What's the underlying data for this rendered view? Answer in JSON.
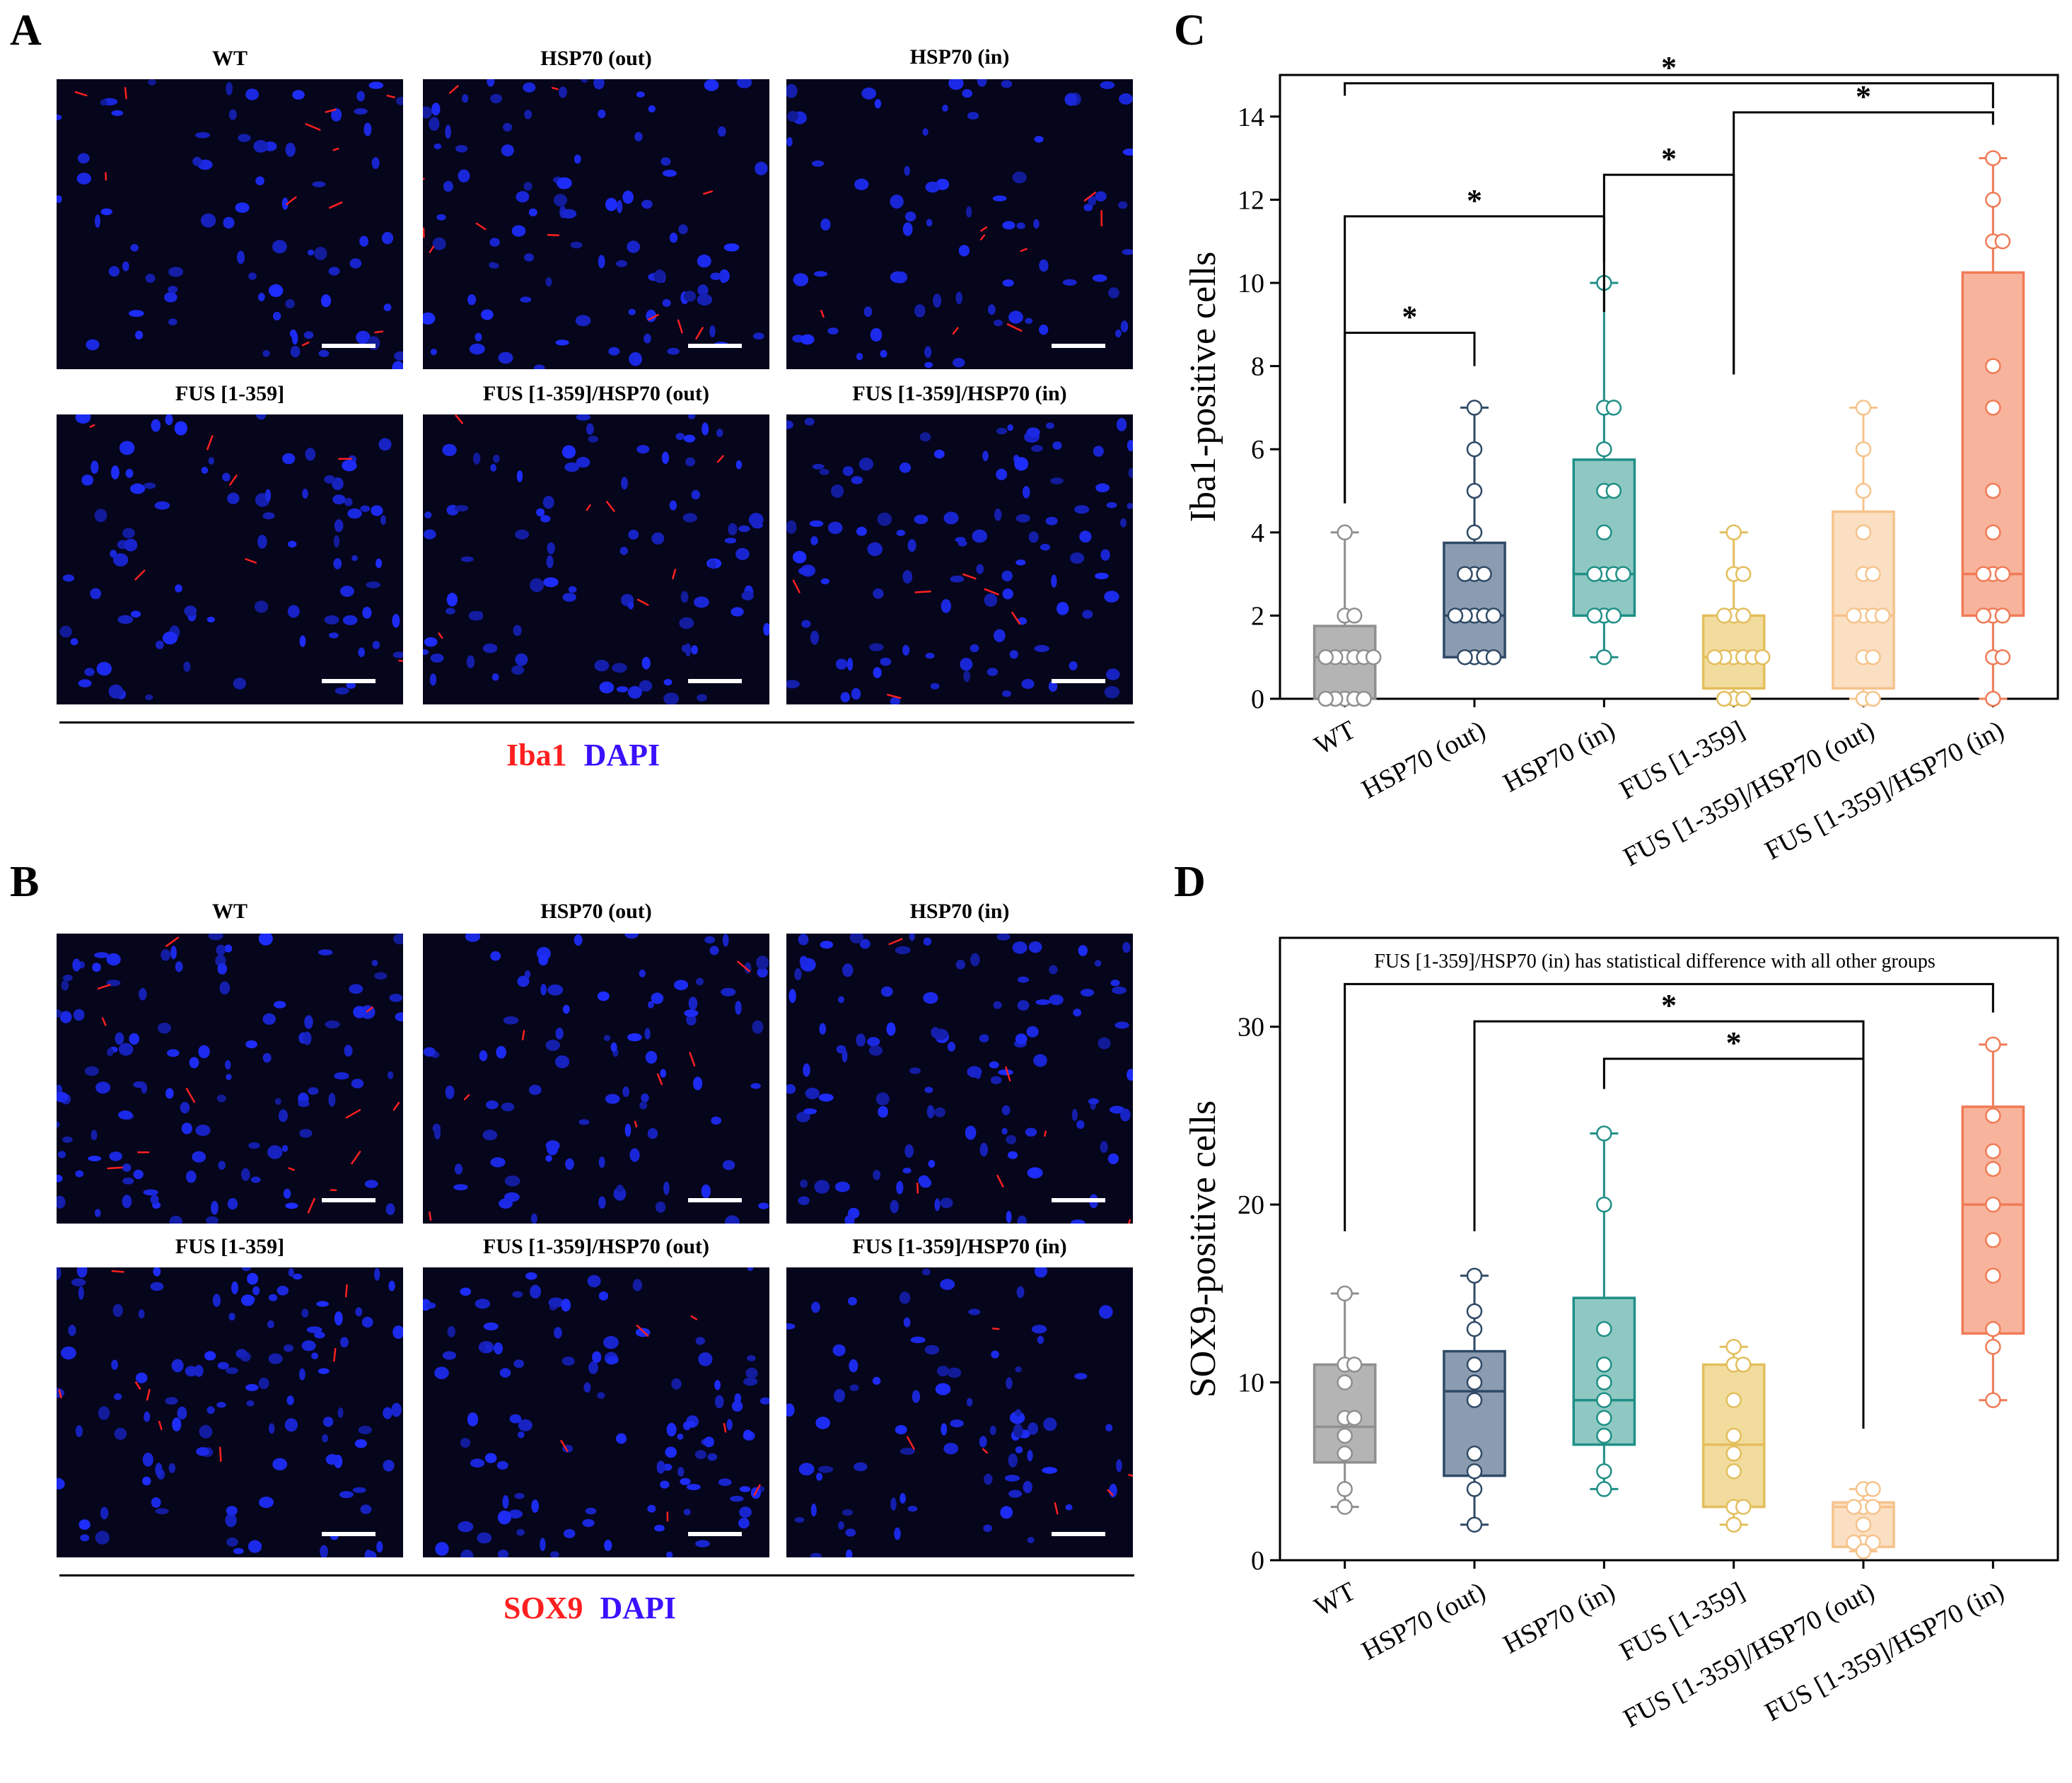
{
  "panels": {
    "A": {
      "label": "A",
      "row1_titles": [
        "WT",
        "HSP70 (out)",
        "HSP70 (in)"
      ],
      "row2_titles": [
        "FUS [1-359]",
        "FUS [1-359]/HSP70 (out)",
        "FUS [1-359]/HSP70 (in)"
      ],
      "legend_marker": "Iba1",
      "legend_dapi": "DAPI",
      "marker_color": "#ff1f1f",
      "dapi_color": "#3a10ff"
    },
    "B": {
      "label": "B",
      "row1_titles": [
        "WT",
        "HSP70 (out)",
        "HSP70 (in)"
      ],
      "row2_titles": [
        "FUS [1-359]",
        "FUS [1-359]/HSP70 (out)",
        "FUS [1-359]/HSP70 (in)"
      ],
      "legend_marker": "SOX9",
      "legend_dapi": "DAPI",
      "marker_color": "#ff1f1f",
      "dapi_color": "#3a10ff"
    },
    "C": {
      "label": "C"
    },
    "D": {
      "label": "D"
    }
  },
  "chart_data": [
    {
      "panel": "C",
      "type": "box",
      "ylabel": "Iba1-positive cells",
      "ylim": [
        0,
        15
      ],
      "yticks": [
        0,
        2,
        4,
        6,
        8,
        10,
        12,
        14
      ],
      "categories": [
        "WT",
        "HSP70 (out)",
        "HSP70 (in)",
        "FUS [1-359]",
        "FUS [1-359]/HSP70 (out)",
        "FUS [1-359]/HSP70 (in)"
      ],
      "colors": [
        "#8f8f8f",
        "#2f4a66",
        "#1f8f86",
        "#e3be5c",
        "#f6c38c",
        "#f07b56"
      ],
      "fills": [
        "#b4b4b4",
        "#8c9cb0",
        "#8fc8c2",
        "#f1dc9e",
        "#fbdfc2",
        "#f8b39c"
      ],
      "series": [
        {
          "name": "WT",
          "min": 0,
          "q1": 0,
          "median": 1,
          "q3": 1.75,
          "max": 4,
          "points": [
            4,
            2,
            2,
            1,
            1,
            1,
            1,
            1,
            1,
            0,
            0,
            0,
            0,
            0
          ]
        },
        {
          "name": "HSP70 (out)",
          "min": 1,
          "q1": 1,
          "median": 2,
          "q3": 3.75,
          "max": 7,
          "points": [
            7,
            6,
            5,
            4,
            3,
            3,
            3,
            2,
            2,
            2,
            2,
            2,
            1,
            1,
            1,
            1
          ]
        },
        {
          "name": "HSP70 (in)",
          "min": 1,
          "q1": 2,
          "median": 3,
          "q3": 5.75,
          "max": 10,
          "points": [
            10,
            7,
            7,
            6,
            5,
            5,
            4,
            3,
            3,
            3,
            3,
            2,
            2,
            2,
            1
          ]
        },
        {
          "name": "FUS [1-359]",
          "min": 0,
          "q1": 0.25,
          "median": 1,
          "q3": 2,
          "max": 4,
          "points": [
            4,
            3,
            3,
            2,
            2,
            2,
            1,
            1,
            1,
            1,
            1,
            1,
            0,
            0,
            0
          ]
        },
        {
          "name": "FUS [1-359]/HSP70 (out)",
          "min": 0,
          "q1": 0.25,
          "median": 2,
          "q3": 4.5,
          "max": 7,
          "points": [
            7,
            6,
            5,
            4,
            3,
            3,
            2,
            2,
            2,
            2,
            1,
            1,
            0,
            0
          ]
        },
        {
          "name": "FUS [1-359]/HSP70 (in)",
          "min": 0,
          "q1": 2,
          "median": 3,
          "q3": 10.25,
          "max": 13,
          "points": [
            13,
            12,
            11,
            11,
            8,
            7,
            5,
            4,
            3,
            3,
            3,
            2,
            2,
            2,
            1,
            1,
            0
          ]
        }
      ],
      "brackets": [
        {
          "from": 0,
          "to": 5,
          "level": 14.8,
          "stub": 14.5,
          "right_stub": 14.2,
          "label": "*"
        },
        {
          "from": 3,
          "to": 5,
          "level": 14.1,
          "stub": 7.8,
          "right_stub": 13.8,
          "label": "*"
        },
        {
          "from": 2,
          "to": 3,
          "level": 12.6,
          "stub": 9.3,
          "right_stub": 7.8,
          "label": "*"
        },
        {
          "from": 0,
          "to": 2,
          "level": 11.6,
          "stub": 4.7,
          "right_stub": 10.5,
          "label": "*"
        },
        {
          "from": 0,
          "to": 1,
          "level": 8.8,
          "stub": 4.7,
          "right_stub": 8.0,
          "label": "*"
        }
      ]
    },
    {
      "panel": "D",
      "type": "box",
      "ylabel": "SOX9-positive cells",
      "ylim": [
        0,
        35
      ],
      "yticks": [
        0,
        10,
        20,
        30
      ],
      "categories": [
        "WT",
        "HSP70 (out)",
        "HSP70 (in)",
        "FUS [1-359]",
        "FUS [1-359]/HSP70 (out)",
        "FUS [1-359]/HSP70 (in)"
      ],
      "colors": [
        "#8f8f8f",
        "#2f4a66",
        "#1f8f86",
        "#e3be5c",
        "#f6c38c",
        "#f07b56"
      ],
      "fills": [
        "#b4b4b4",
        "#8c9cb0",
        "#8fc8c2",
        "#f1dc9e",
        "#fbdfc2",
        "#f8b39c"
      ],
      "annotation": "FUS [1-359]/HSP70 (in) has statistical difference with all other groups",
      "series": [
        {
          "name": "WT",
          "min": 3,
          "q1": 5.5,
          "median": 7.5,
          "q3": 11,
          "max": 15,
          "points": [
            15,
            11,
            11,
            10,
            8,
            8,
            7,
            6,
            4,
            3
          ]
        },
        {
          "name": "HSP70 (out)",
          "min": 2,
          "q1": 4.75,
          "median": 9.5,
          "q3": 11.75,
          "max": 16,
          "points": [
            16,
            14,
            13,
            11,
            10,
            9,
            6,
            5,
            4,
            2
          ]
        },
        {
          "name": "HSP70 (in)",
          "min": 4,
          "q1": 6.5,
          "median": 9,
          "q3": 14.75,
          "max": 24,
          "points": [
            24,
            20,
            13,
            11,
            10,
            9,
            8,
            7,
            5,
            4
          ]
        },
        {
          "name": "FUS [1-359]",
          "min": 2,
          "q1": 3,
          "median": 6.5,
          "q3": 11,
          "max": 12,
          "points": [
            12,
            11,
            11,
            9,
            7,
            6,
            5,
            3,
            3,
            2
          ]
        },
        {
          "name": "FUS [1-359]/HSP70 (out)",
          "min": 0.5,
          "q1": 0.75,
          "median": 3,
          "q3": 3.25,
          "max": 4,
          "points": [
            4,
            4,
            3,
            3,
            3,
            2,
            1,
            1,
            1,
            0.5
          ]
        },
        {
          "name": "FUS [1-359]/HSP70 (in)",
          "min": 9,
          "q1": 12.75,
          "median": 20,
          "q3": 25.5,
          "max": 29,
          "points": [
            29,
            25,
            23,
            22,
            20,
            18,
            16,
            13,
            12,
            9
          ]
        }
      ],
      "brackets": [
        {
          "from": 0,
          "to": 5,
          "level": 32.4,
          "stub": 18.5,
          "right_stub": 30.8,
          "label": ""
        },
        {
          "from": 1,
          "to": 4,
          "level": 30.3,
          "stub": 18.5,
          "right_stub": 7.4,
          "label": "*"
        },
        {
          "from": 2,
          "to": 4,
          "level": 28.2,
          "stub": 26.5,
          "right_stub": 7.4,
          "label": "*"
        }
      ]
    }
  ]
}
